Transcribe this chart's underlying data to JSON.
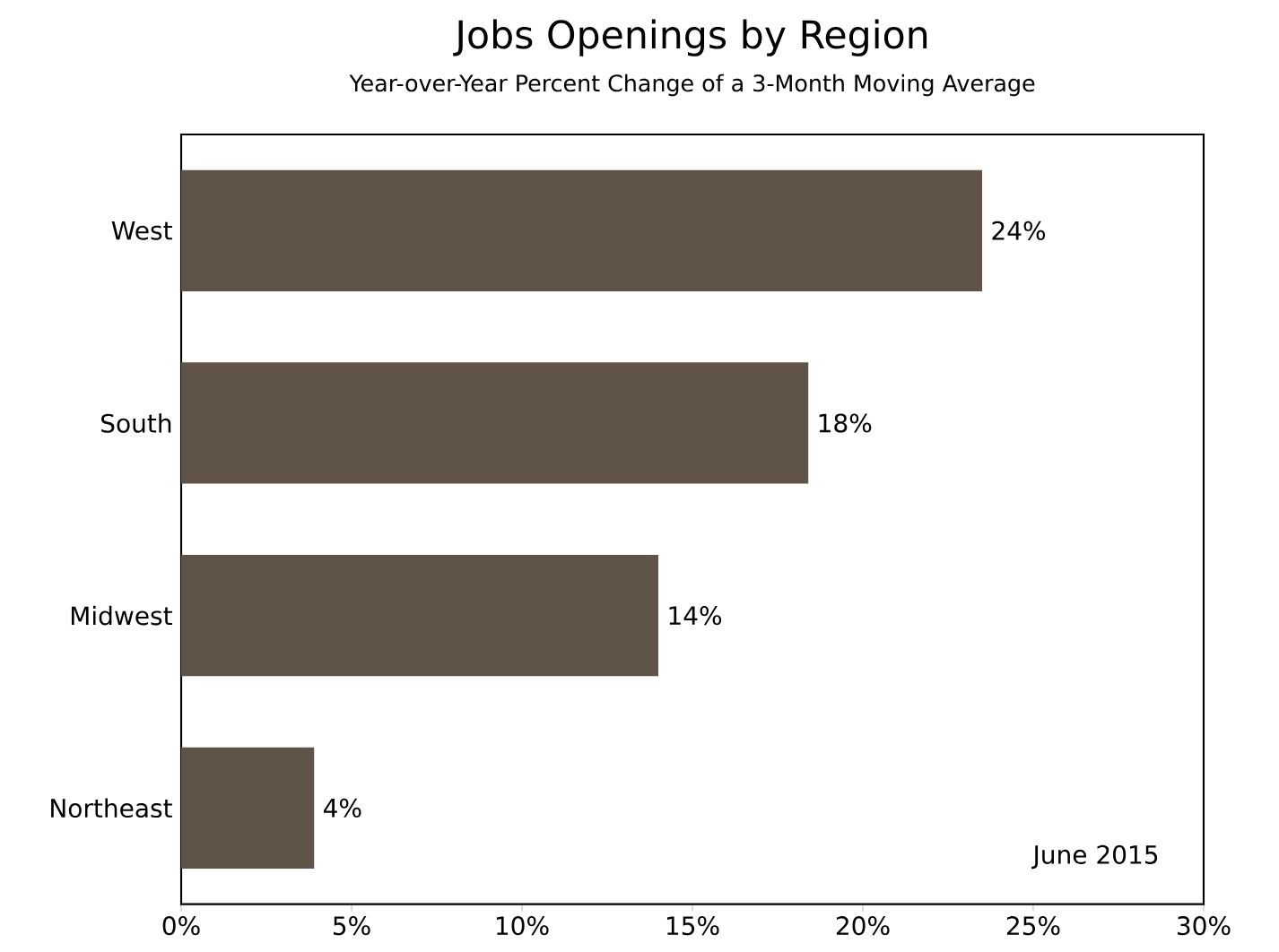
{
  "chart_data": {
    "type": "bar",
    "orientation": "horizontal",
    "title": "Jobs Openings by Region",
    "subtitle": "Year-over-Year Percent Change of a 3-Month Moving Average",
    "categories": [
      "West",
      "South",
      "Midwest",
      "Northeast"
    ],
    "values": [
      23.5,
      18.4,
      14.0,
      3.9
    ],
    "value_labels": [
      "24%",
      "18%",
      "14%",
      "4%"
    ],
    "color": "#5f5447",
    "xlim": [
      0,
      30
    ],
    "xticks": [
      {
        "value": 0,
        "label": "0%"
      },
      {
        "value": 5,
        "label": "5%"
      },
      {
        "value": 10,
        "label": "10%"
      },
      {
        "value": 15,
        "label": "15%"
      },
      {
        "value": 20,
        "label": "20%"
      },
      {
        "value": 25,
        "label": "25%"
      },
      {
        "value": 30,
        "label": "30%"
      }
    ],
    "annotations": [
      "June 2015"
    ]
  }
}
